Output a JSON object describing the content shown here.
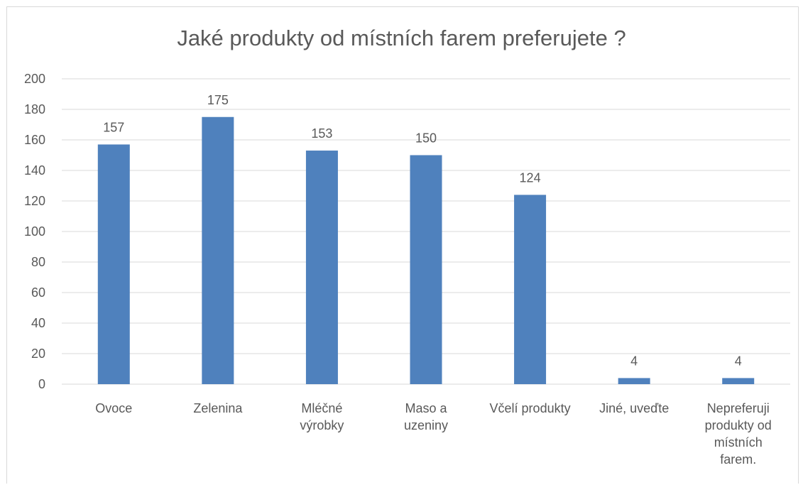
{
  "chart_data": {
    "type": "bar",
    "title": "Jaké produkty od místních farem preferujete ?",
    "categories": [
      [
        "Ovoce"
      ],
      [
        "Zelenina"
      ],
      [
        "Mléčné",
        "výrobky"
      ],
      [
        "Maso a",
        "uzeniny"
      ],
      [
        "Včelí produkty"
      ],
      [
        "Jiné, uveďte"
      ],
      [
        "Nepreferuji",
        "produkty od",
        "místních",
        "farem."
      ]
    ],
    "values": [
      157,
      175,
      153,
      150,
      124,
      4,
      4
    ],
    "ylim": [
      0,
      200
    ],
    "yticks": [
      0,
      20,
      40,
      60,
      80,
      100,
      120,
      140,
      160,
      180,
      200
    ],
    "grid": true,
    "legend": "none",
    "bar_color": "#4f81bd",
    "grid_color": "#d9d9d9",
    "text_color": "#595959"
  }
}
